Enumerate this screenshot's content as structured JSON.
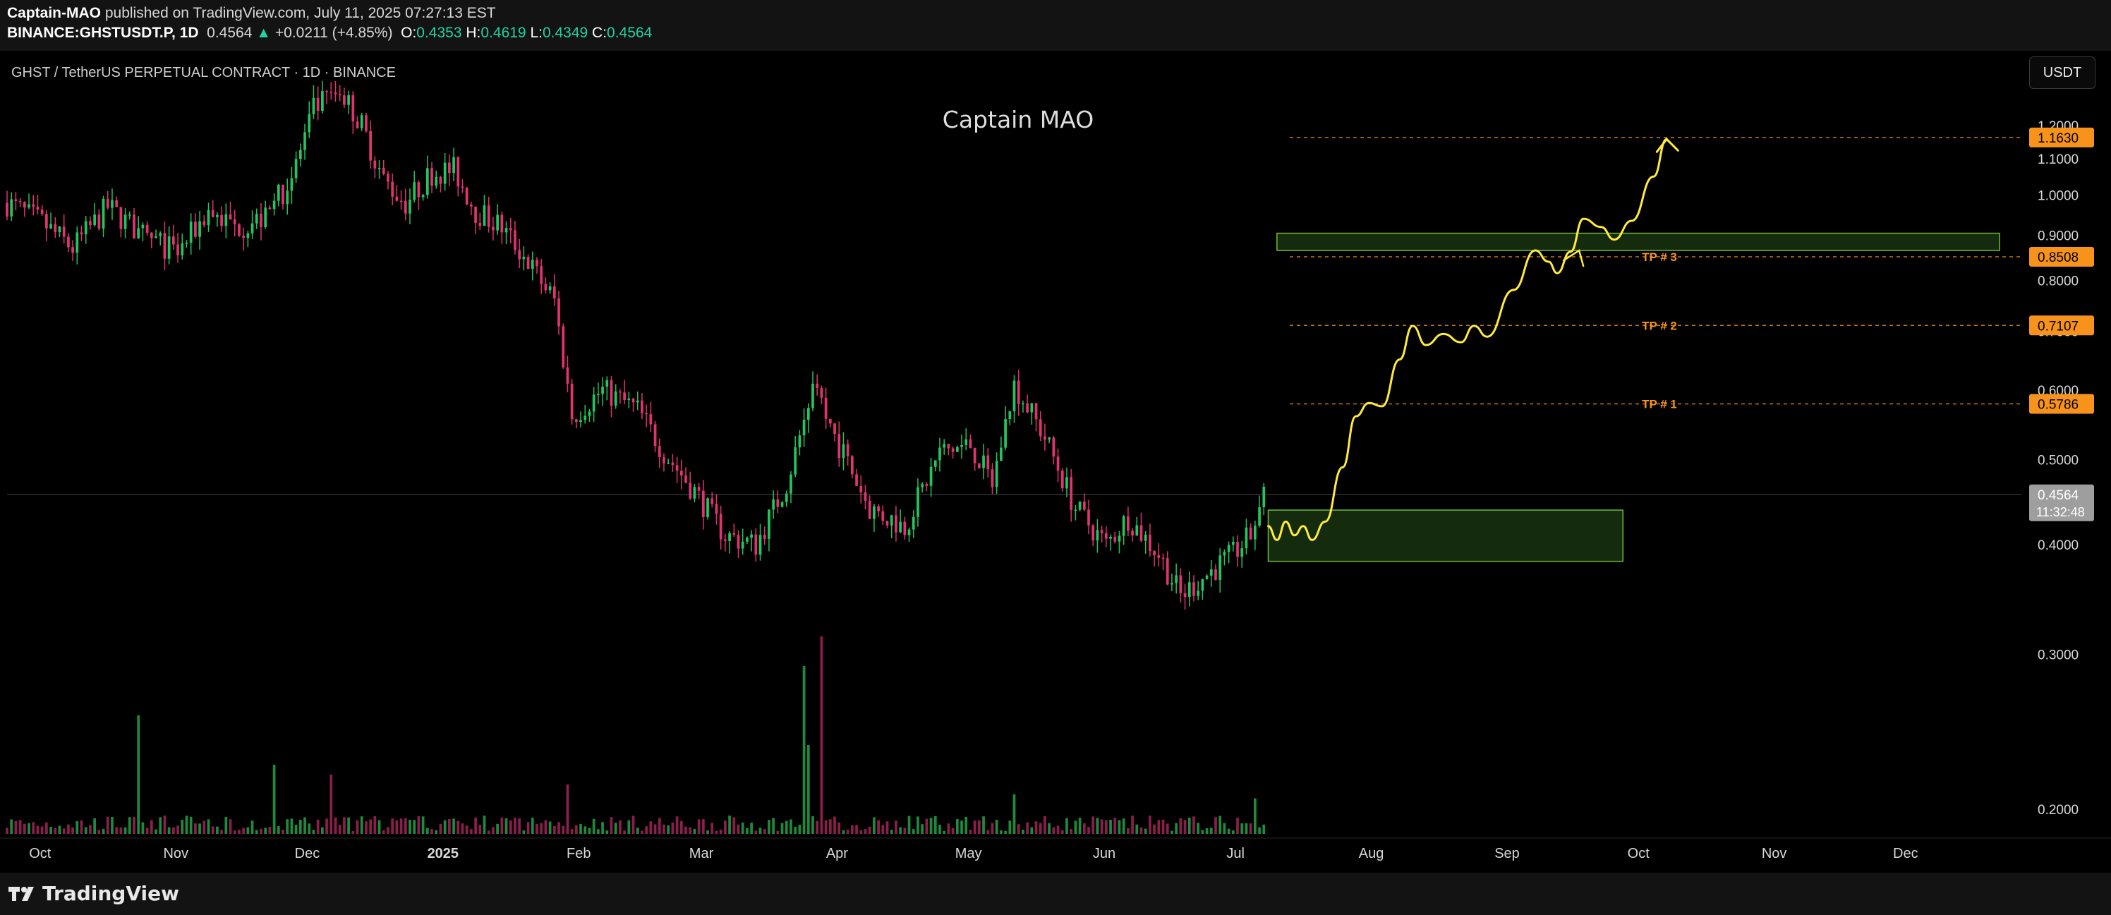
{
  "header": {
    "author": "Captain-MAO",
    "published_text": "published on TradingView.com, July 11, 2025 07:27:13 EST",
    "symbol": "BINANCE:GHSTUSDT.P, 1D",
    "last": "0.4564",
    "change": "+0.0211 (+4.85%)",
    "ohlc": [
      {
        "label": "O:",
        "value": "0.4353"
      },
      {
        "label": "H:",
        "value": "0.4619"
      },
      {
        "label": "L:",
        "value": "0.4349"
      },
      {
        "label": "C:",
        "value": "0.4564"
      }
    ]
  },
  "currency_button": "USDT",
  "footer": {
    "brand": "TradingView"
  },
  "colors": {
    "up": "#22c55e",
    "down": "#e0336f",
    "yellow": "#ffeb3b",
    "orange": "#f7931a",
    "zone_fill": "#1c3a12",
    "zone_stroke": "#6dbb3a"
  },
  "chart_data": {
    "type": "candlestick",
    "title": "GHST / TetherUS PERPETUAL CONTRACT · 1D · BINANCE",
    "watermark": "Captain MAO",
    "y_axis": {
      "scale": "log",
      "ticks": [
        "1.2000",
        "1.1000",
        "1.0000",
        "0.9000",
        "0.8000",
        "0.7000",
        "0.6000",
        "0.5000",
        "0.4000",
        "0.3000",
        "0.2000"
      ],
      "range": [
        0.18,
        1.35
      ]
    },
    "x_axis": {
      "ticks": [
        "Oct",
        "Nov",
        "Dec",
        "2025",
        "Feb",
        "Mar",
        "Apr",
        "May",
        "Jun",
        "Jul",
        "Aug",
        "Sep",
        "Oct",
        "Nov",
        "Dec"
      ],
      "range": [
        "2024-09-27",
        "2025-12-31"
      ]
    },
    "price_path": [
      [
        "2024-09-27",
        0.98
      ],
      [
        "2024-10-05",
        0.93
      ],
      [
        "2024-10-12",
        0.87
      ],
      [
        "2024-10-20",
        0.97
      ],
      [
        "2024-10-28",
        0.9
      ],
      [
        "2024-11-05",
        0.86
      ],
      [
        "2024-11-12",
        0.96
      ],
      [
        "2024-11-18",
        0.92
      ],
      [
        "2024-11-25",
        0.94
      ],
      [
        "2024-12-01",
        1.05
      ],
      [
        "2024-12-06",
        1.25
      ],
      [
        "2024-12-12",
        1.32
      ],
      [
        "2024-12-17",
        1.2
      ],
      [
        "2024-12-22",
        1.04
      ],
      [
        "2024-12-27",
        0.98
      ],
      [
        "2025-01-02",
        1.06
      ],
      [
        "2025-01-07",
        1.07
      ],
      [
        "2025-01-12",
        0.96
      ],
      [
        "2025-01-18",
        0.92
      ],
      [
        "2025-01-24",
        0.84
      ],
      [
        "2025-01-30",
        0.76
      ],
      [
        "2025-02-03",
        0.56
      ],
      [
        "2025-02-10",
        0.6
      ],
      [
        "2025-02-18",
        0.57
      ],
      [
        "2025-02-24",
        0.51
      ],
      [
        "2025-03-03",
        0.46
      ],
      [
        "2025-03-10",
        0.41
      ],
      [
        "2025-03-17",
        0.4
      ],
      [
        "2025-03-24",
        0.47
      ],
      [
        "2025-03-30",
        0.6
      ],
      [
        "2025-04-05",
        0.52
      ],
      [
        "2025-04-12",
        0.44
      ],
      [
        "2025-04-20",
        0.42
      ],
      [
        "2025-04-28",
        0.51
      ],
      [
        "2025-05-05",
        0.52
      ],
      [
        "2025-05-10",
        0.47
      ],
      [
        "2025-05-15",
        0.61
      ],
      [
        "2025-05-22",
        0.53
      ],
      [
        "2025-05-29",
        0.44
      ],
      [
        "2025-06-05",
        0.4
      ],
      [
        "2025-06-10",
        0.43
      ],
      [
        "2025-06-17",
        0.39
      ],
      [
        "2025-06-22",
        0.35
      ],
      [
        "2025-06-28",
        0.37
      ],
      [
        "2025-07-04",
        0.39
      ],
      [
        "2025-07-08",
        0.41
      ],
      [
        "2025-07-11",
        0.456
      ]
    ],
    "volume_spikes": [
      [
        "2024-10-27",
        0.6
      ],
      [
        "2024-11-27",
        0.35
      ],
      [
        "2024-12-10",
        0.3
      ],
      [
        "2025-02-02",
        0.25
      ],
      [
        "2025-03-28",
        0.85
      ],
      [
        "2025-03-29",
        0.45
      ],
      [
        "2025-04-01",
        1.0
      ],
      [
        "2025-05-15",
        0.2
      ],
      [
        "2025-07-09",
        0.18
      ]
    ],
    "target_lines": [
      {
        "price": 1.163,
        "price_label": "1.1630",
        "label": ""
      },
      {
        "price": 0.8508,
        "price_label": "0.8508",
        "label": "TP # 3"
      },
      {
        "price": 0.7107,
        "price_label": "0.7107",
        "label": "TP # 2"
      },
      {
        "price": 0.5786,
        "price_label": "0.5786",
        "label": "TP # 1"
      }
    ],
    "current_price": {
      "price": 0.4564,
      "label": "0.4564",
      "countdown": "11:32:48"
    },
    "zones": [
      {
        "name": "entry-zone",
        "x": [
          "2025-07-12",
          "2025-10-01"
        ],
        "y": [
          0.383,
          0.438
        ]
      },
      {
        "name": "resistance-zone",
        "x": [
          "2025-07-14",
          "2025-12-26"
        ],
        "y": [
          0.865,
          0.905
        ]
      }
    ],
    "projection": [
      [
        "2025-07-12",
        0.42
      ],
      [
        "2025-07-14",
        0.405
      ],
      [
        "2025-07-16",
        0.425
      ],
      [
        "2025-07-18",
        0.41
      ],
      [
        "2025-07-20",
        0.42
      ],
      [
        "2025-07-22",
        0.405
      ],
      [
        "2025-07-25",
        0.425
      ],
      [
        "2025-07-29",
        0.49
      ],
      [
        "2025-08-01",
        0.56
      ],
      [
        "2025-08-04",
        0.58
      ],
      [
        "2025-08-07",
        0.575
      ],
      [
        "2025-08-11",
        0.65
      ],
      [
        "2025-08-14",
        0.71
      ],
      [
        "2025-08-17",
        0.675
      ],
      [
        "2025-08-21",
        0.695
      ],
      [
        "2025-08-25",
        0.68
      ],
      [
        "2025-08-28",
        0.71
      ],
      [
        "2025-08-31",
        0.69
      ],
      [
        "2025-09-06",
        0.78
      ],
      [
        "2025-09-11",
        0.865
      ],
      [
        "2025-09-14",
        0.84
      ],
      [
        "2025-09-16",
        0.815
      ],
      [
        "2025-09-19",
        0.862
      ],
      [
        "2025-09-22",
        0.94
      ],
      [
        "2025-09-26",
        0.92
      ],
      [
        "2025-09-29",
        0.89
      ],
      [
        "2025-10-03",
        0.935
      ],
      [
        "2025-10-08",
        1.05
      ],
      [
        "2025-10-11",
        1.158
      ]
    ],
    "legend": "none",
    "grid": false
  }
}
